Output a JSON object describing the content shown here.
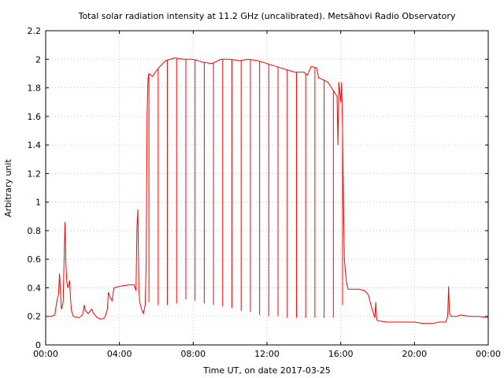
{
  "chart_data": {
    "type": "line",
    "title": "Total solar radiation intensity at 11.2 GHz (uncalibrated). Metsähovi Radio Observatory",
    "xlabel": "Time UT, on date 2017-03-25",
    "ylabel": "Arbitrary unit",
    "xlim": [
      0,
      24
    ],
    "ylim": [
      0,
      2.2
    ],
    "grid": true,
    "x_ticks": [
      {
        "value": 0,
        "label": "00:00"
      },
      {
        "value": 4,
        "label": "04:00"
      },
      {
        "value": 8,
        "label": "08:00"
      },
      {
        "value": 12,
        "label": "12:00"
      },
      {
        "value": 16,
        "label": "16:00"
      },
      {
        "value": 20,
        "label": "20:00"
      },
      {
        "value": 24,
        "label": "00:00"
      }
    ],
    "y_ticks": [
      {
        "value": 0,
        "label": "0"
      },
      {
        "value": 0.2,
        "label": "0.2"
      },
      {
        "value": 0.4,
        "label": "0.4"
      },
      {
        "value": 0.6,
        "label": "0.6"
      },
      {
        "value": 0.8,
        "label": "0.8"
      },
      {
        "value": 1.0,
        "label": "1"
      },
      {
        "value": 1.2,
        "label": "1.2"
      },
      {
        "value": 1.4,
        "label": "1.4"
      },
      {
        "value": 1.6,
        "label": "1.6"
      },
      {
        "value": 1.8,
        "label": "1.8"
      },
      {
        "value": 2.0,
        "label": "2"
      },
      {
        "value": 2.2,
        "label": "2.2"
      }
    ],
    "series": [
      {
        "color": "#ff0000",
        "points": [
          [
            0.0,
            0.2
          ],
          [
            0.3,
            0.2
          ],
          [
            0.5,
            0.21
          ],
          [
            0.6,
            0.3
          ],
          [
            0.7,
            0.36
          ],
          [
            0.75,
            0.5
          ],
          [
            0.8,
            0.38
          ],
          [
            0.85,
            0.25
          ],
          [
            0.95,
            0.3
          ],
          [
            1.0,
            0.6
          ],
          [
            1.05,
            0.86
          ],
          [
            1.1,
            0.55
          ],
          [
            1.15,
            0.44
          ],
          [
            1.2,
            0.4
          ],
          [
            1.3,
            0.45
          ],
          [
            1.35,
            0.32
          ],
          [
            1.4,
            0.24
          ],
          [
            1.5,
            0.2
          ],
          [
            1.8,
            0.19
          ],
          [
            2.0,
            0.21
          ],
          [
            2.1,
            0.28
          ],
          [
            2.15,
            0.24
          ],
          [
            2.3,
            0.22
          ],
          [
            2.5,
            0.25
          ],
          [
            2.6,
            0.22
          ],
          [
            2.8,
            0.19
          ],
          [
            3.0,
            0.18
          ],
          [
            3.2,
            0.19
          ],
          [
            3.35,
            0.25
          ],
          [
            3.4,
            0.37
          ],
          [
            3.5,
            0.33
          ],
          [
            3.6,
            0.31
          ],
          [
            3.7,
            0.4
          ],
          [
            4.0,
            0.41
          ],
          [
            4.5,
            0.42
          ],
          [
            4.8,
            0.42
          ],
          [
            4.9,
            0.38
          ],
          [
            4.95,
            0.82
          ],
          [
            5.0,
            0.95
          ],
          [
            5.05,
            0.4
          ],
          [
            5.1,
            0.3
          ],
          [
            5.2,
            0.25
          ],
          [
            5.3,
            0.22
          ],
          [
            5.4,
            0.28
          ],
          [
            5.45,
            0.55
          ],
          [
            5.5,
            1.62
          ],
          [
            5.55,
            1.87
          ],
          [
            5.6,
            1.9
          ],
          [
            5.8,
            1.88
          ],
          [
            6.0,
            1.92
          ],
          [
            6.2,
            1.95
          ],
          [
            6.5,
            1.99
          ],
          [
            7.0,
            2.01
          ],
          [
            7.5,
            2.0
          ],
          [
            8.0,
            2.0
          ],
          [
            8.5,
            1.98
          ],
          [
            9.0,
            1.97
          ],
          [
            9.5,
            2.0
          ],
          [
            10.0,
            2.0
          ],
          [
            10.5,
            1.99
          ],
          [
            11.0,
            2.0
          ],
          [
            11.5,
            1.99
          ],
          [
            12.0,
            1.97
          ],
          [
            12.5,
            1.95
          ],
          [
            13.0,
            1.93
          ],
          [
            13.5,
            1.91
          ],
          [
            14.0,
            1.91
          ],
          [
            14.2,
            1.89
          ],
          [
            14.4,
            1.95
          ],
          [
            14.7,
            1.94
          ],
          [
            14.8,
            1.87
          ],
          [
            15.0,
            1.86
          ],
          [
            15.3,
            1.84
          ],
          [
            15.5,
            1.8
          ],
          [
            15.7,
            1.76
          ],
          [
            15.8,
            1.74
          ],
          [
            15.85,
            1.4
          ],
          [
            15.9,
            1.84
          ],
          [
            16.0,
            1.7
          ],
          [
            16.05,
            1.84
          ],
          [
            16.1,
            1.5
          ],
          [
            16.15,
            1.0
          ],
          [
            16.2,
            0.6
          ],
          [
            16.3,
            0.45
          ],
          [
            16.4,
            0.39
          ],
          [
            17.0,
            0.39
          ],
          [
            17.3,
            0.38
          ],
          [
            17.5,
            0.35
          ],
          [
            17.6,
            0.3
          ],
          [
            17.7,
            0.25
          ],
          [
            17.85,
            0.19
          ],
          [
            17.9,
            0.3
          ],
          [
            17.95,
            0.18
          ],
          [
            18.0,
            0.17
          ],
          [
            18.5,
            0.16
          ],
          [
            19.0,
            0.16
          ],
          [
            19.5,
            0.16
          ],
          [
            20.0,
            0.16
          ],
          [
            20.5,
            0.15
          ],
          [
            21.0,
            0.15
          ],
          [
            21.3,
            0.16
          ],
          [
            21.7,
            0.16
          ],
          [
            21.8,
            0.2
          ],
          [
            21.85,
            0.41
          ],
          [
            21.9,
            0.22
          ],
          [
            22.0,
            0.2
          ],
          [
            22.3,
            0.2
          ],
          [
            22.5,
            0.21
          ],
          [
            23.0,
            0.2
          ],
          [
            23.5,
            0.2
          ],
          [
            24.0,
            0.19
          ]
        ],
        "dropouts": [
          [
            5.6,
            0.3
          ],
          [
            6.1,
            0.28
          ],
          [
            6.6,
            0.28
          ],
          [
            7.1,
            0.29
          ],
          [
            7.6,
            0.32
          ],
          [
            8.1,
            0.31
          ],
          [
            8.6,
            0.29
          ],
          [
            9.1,
            0.28
          ],
          [
            9.6,
            0.27
          ],
          [
            10.1,
            0.26
          ],
          [
            10.6,
            0.24
          ],
          [
            11.1,
            0.23
          ],
          [
            11.6,
            0.21
          ],
          [
            12.1,
            0.2
          ],
          [
            12.6,
            0.2
          ],
          [
            13.1,
            0.19
          ],
          [
            13.6,
            0.19
          ],
          [
            14.1,
            0.19
          ],
          [
            14.6,
            0.19
          ],
          [
            15.1,
            0.19
          ],
          [
            15.6,
            0.19
          ],
          [
            16.1,
            0.28
          ]
        ]
      }
    ]
  }
}
